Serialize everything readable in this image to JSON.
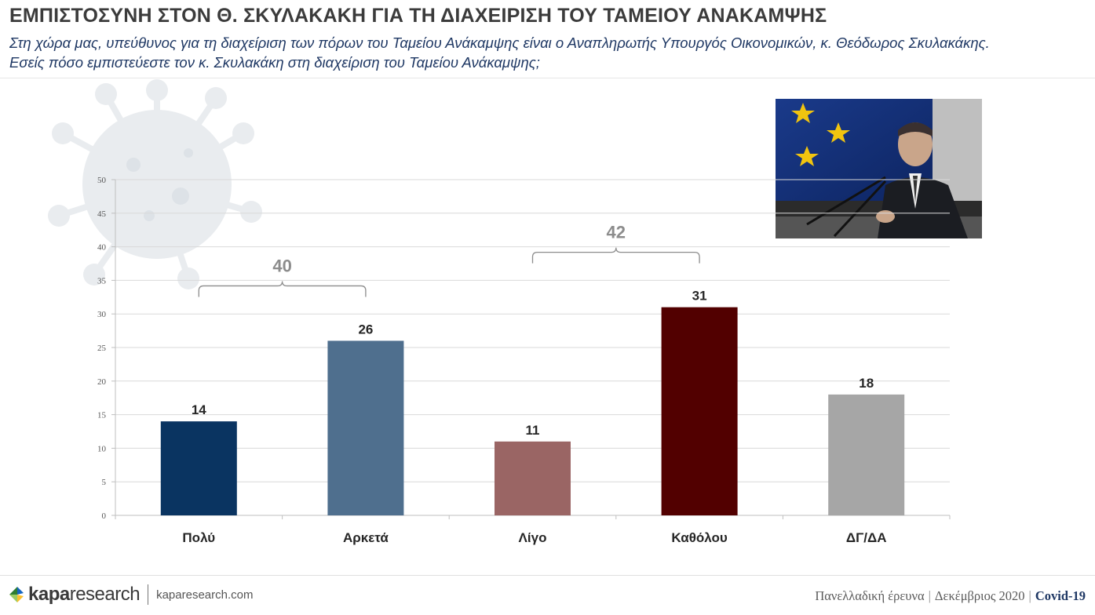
{
  "header": {
    "title": "ΕΜΠΙΣΤΟΣΥΝΗ ΣΤΟΝ Θ. ΣΚΥΛΑΚΑΚΗ ΓΙΑ ΤΗ ΔΙΑΧΕΙΡΙΣΗ ΤΟΥ ΤΑΜΕΙΟΥ ΑΝΑΚΑΜΨΗΣ",
    "subtitle_line1": "Στη χώρα μας, υπεύθυνος για τη διαχείριση των πόρων του Ταμείου Ανάκαμψης είναι ο Αναπληρωτής Υπουργός Οικονομικών, κ. Θεόδωρος Σκυλακάκης.",
    "subtitle_line2": "Εσείς πόσο εμπιστεύεστε τον κ. Σκυλακάκη στη διαχείριση του Ταμείου Ανάκαμψης;"
  },
  "chart_data": {
    "type": "bar",
    "categories": [
      "Πολύ",
      "Αρκετά",
      "Λίγο",
      "Καθόλου",
      "ΔΓ/ΔΑ"
    ],
    "values": [
      14,
      26,
      11,
      31,
      18
    ],
    "data_labels": [
      "14",
      "26",
      "11",
      "31",
      "18"
    ],
    "bar_colors": [
      "#0a3461",
      "#4f6f8e",
      "#9a6564",
      "#520000",
      "#a6a6a6"
    ],
    "ylim": [
      0,
      50
    ],
    "yticks": [
      0,
      5,
      10,
      15,
      20,
      25,
      30,
      35,
      40,
      45,
      50
    ],
    "grid": true,
    "groups": [
      {
        "label": "40",
        "from": 0,
        "to": 1
      },
      {
        "label": "42",
        "from": 2,
        "to": 3
      }
    ]
  },
  "footer": {
    "brand_strong": "kapa",
    "brand_light": "research",
    "site": "kaparesearch.com",
    "survey": "Πανελλαδική έρευνα",
    "date": "Δεκέμβριος 2020",
    "topic": "Covid-19"
  },
  "colors": {
    "title": "#3b3b3b",
    "subtitle": "#1f3864",
    "bracket_label": "#8c8c8c",
    "axis_text": "#555555",
    "grid": "#d9d9d9"
  }
}
